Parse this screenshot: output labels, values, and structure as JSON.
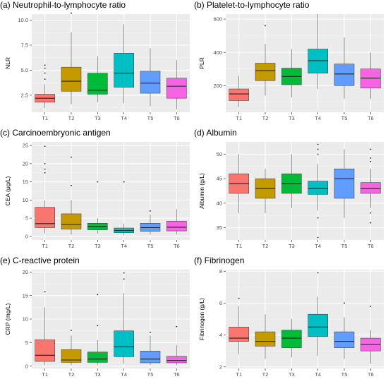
{
  "chart_data": [
    {
      "type": "boxplot",
      "title": "(a) Neutrophil-to-lymphocyte ratio",
      "xlabel": "",
      "ylabel": "NLR",
      "ylim": [
        0.8,
        10.6
      ],
      "yticks": [
        2.5,
        5.0,
        7.5,
        10.0
      ],
      "ytick_labels": [
        "2.5",
        "5.0",
        "7.5",
        "10.0"
      ],
      "categories": [
        "T1",
        "T2",
        "T3",
        "T4",
        "T5",
        "T6"
      ],
      "colors": [
        "#F8766D",
        "#C49A00",
        "#00BA38",
        "#00BFC4",
        "#619CFF",
        "#F564E3"
      ],
      "boxes": [
        {
          "low": 1.2,
          "q1": 1.8,
          "median": 2.2,
          "q3": 2.6,
          "high": 3.6,
          "outliers": [
            4.1,
            4.7,
            5.2,
            5.5
          ]
        },
        {
          "low": 1.6,
          "q1": 2.9,
          "median": 3.9,
          "q3": 5.3,
          "high": 8.8,
          "outliers": [
            10.7
          ]
        },
        {
          "low": 1.8,
          "q1": 2.6,
          "median": 3.0,
          "q3": 4.7,
          "high": 6.4,
          "outliers": []
        },
        {
          "low": 1.7,
          "q1": 3.3,
          "median": 4.7,
          "q3": 6.7,
          "high": 9.6,
          "outliers": []
        },
        {
          "low": 1.4,
          "q1": 2.7,
          "median": 3.7,
          "q3": 4.9,
          "high": 7.2,
          "outliers": []
        },
        {
          "low": 1.1,
          "q1": 2.2,
          "median": 3.4,
          "q3": 4.2,
          "high": 6.0,
          "outliers": []
        }
      ]
    },
    {
      "type": "boxplot",
      "title": "(b) Platelet-to-lymphocyte ratio",
      "xlabel": "",
      "ylabel": "PLR",
      "ylim": [
        40,
        630
      ],
      "yticks": [
        200,
        400,
        600
      ],
      "ytick_labels": [
        "200",
        "400",
        "600"
      ],
      "categories": [
        "T1",
        "T2",
        "T3",
        "T4",
        "T5",
        "T6"
      ],
      "colors": [
        "#F8766D",
        "#C49A00",
        "#00BA38",
        "#00BFC4",
        "#619CFF",
        "#F564E3"
      ],
      "boxes": [
        {
          "low": 70,
          "q1": 110,
          "median": 150,
          "q3": 180,
          "high": 260,
          "outliers": []
        },
        {
          "low": 140,
          "q1": 230,
          "median": 290,
          "q3": 335,
          "high": 450,
          "outliers": [
            560
          ]
        },
        {
          "low": 130,
          "q1": 205,
          "median": 255,
          "q3": 305,
          "high": 420,
          "outliers": []
        },
        {
          "low": 180,
          "q1": 275,
          "median": 350,
          "q3": 420,
          "high": 630,
          "outliers": []
        },
        {
          "low": 120,
          "q1": 200,
          "median": 270,
          "q3": 330,
          "high": 490,
          "outliers": []
        },
        {
          "low": 120,
          "q1": 185,
          "median": 245,
          "q3": 300,
          "high": 400,
          "outliers": []
        }
      ]
    },
    {
      "type": "boxplot",
      "title": "(c) Carcinoembryonic antigen",
      "xlabel": "",
      "ylabel": "CEA (μg/L)",
      "ylim": [
        -1,
        26
      ],
      "yticks": [
        0,
        5,
        10,
        15,
        20,
        25
      ],
      "ytick_labels": [
        "0",
        "5",
        "10",
        "15",
        "20",
        "25"
      ],
      "categories": [
        "T1",
        "T2",
        "T3",
        "T4",
        "T5",
        "T6"
      ],
      "colors": [
        "#F8766D",
        "#C49A00",
        "#00BA38",
        "#00BFC4",
        "#619CFF",
        "#F564E3"
      ],
      "boxes": [
        {
          "low": 0.8,
          "q1": 2.4,
          "median": 3.5,
          "q3": 8.0,
          "high": 10.0,
          "outliers": [
            17.5,
            18.5,
            20.0,
            24.8
          ]
        },
        {
          "low": 0.5,
          "q1": 2.0,
          "median": 3.3,
          "q3": 6.2,
          "high": 10.0,
          "outliers": [
            14.0,
            21.8
          ]
        },
        {
          "low": 0.7,
          "q1": 1.8,
          "median": 2.7,
          "q3": 3.6,
          "high": 5.0,
          "outliers": [
            15.0
          ]
        },
        {
          "low": 0.3,
          "q1": 1.0,
          "median": 1.6,
          "q3": 2.3,
          "high": 3.5,
          "outliers": [
            15.0
          ]
        },
        {
          "low": 0.5,
          "q1": 1.4,
          "median": 2.4,
          "q3": 3.6,
          "high": 6.0,
          "outliers": [
            7.0
          ]
        },
        {
          "low": 0.5,
          "q1": 1.5,
          "median": 2.5,
          "q3": 4.2,
          "high": 7.5,
          "outliers": []
        }
      ]
    },
    {
      "type": "boxplot",
      "title": "(d) Albumin",
      "xlabel": "",
      "ylabel": "Albumin (g/L)",
      "ylim": [
        32.5,
        52.5
      ],
      "yticks": [
        35,
        40,
        45,
        50
      ],
      "ytick_labels": [
        "35",
        "40",
        "45",
        "50"
      ],
      "categories": [
        "T1",
        "T2",
        "T3",
        "T4",
        "T5",
        "T6"
      ],
      "colors": [
        "#F8766D",
        "#C49A00",
        "#00BA38",
        "#00BFC4",
        "#619CFF",
        "#F564E3"
      ],
      "boxes": [
        {
          "low": 38.0,
          "q1": 42.0,
          "median": 44.0,
          "q3": 46.0,
          "high": 50.0,
          "outliers": []
        },
        {
          "low": 38.0,
          "q1": 41.0,
          "median": 43.0,
          "q3": 45.0,
          "high": 47.0,
          "outliers": []
        },
        {
          "low": 39.0,
          "q1": 42.0,
          "median": 44.0,
          "q3": 46.0,
          "high": 50.0,
          "outliers": []
        },
        {
          "low": 38.5,
          "q1": 41.8,
          "median": 43.0,
          "q3": 44.5,
          "high": 48.0,
          "outliers": [
            33.0,
            37.0,
            50.0,
            51.0,
            52.0
          ]
        },
        {
          "low": 37.0,
          "q1": 41.0,
          "median": 45.0,
          "q3": 47.0,
          "high": 51.0,
          "outliers": []
        },
        {
          "low": 39.0,
          "q1": 42.0,
          "median": 43.0,
          "q3": 44.2,
          "high": 47.0,
          "outliers": [
            36.0,
            38.0,
            48.5,
            49.2,
            51.0
          ]
        }
      ]
    },
    {
      "type": "boxplot",
      "title": "(e) C-reactive protein",
      "xlabel": "",
      "ylabel": "CRP (mg/L)",
      "ylim": [
        -0.5,
        20.5
      ],
      "yticks": [
        0,
        5,
        10,
        15,
        20
      ],
      "ytick_labels": [
        "0",
        "5",
        "10",
        "15",
        "20"
      ],
      "categories": [
        "T1",
        "T2",
        "T3",
        "T4",
        "T5",
        "T6"
      ],
      "colors": [
        "#F8766D",
        "#C49A00",
        "#00BA38",
        "#00BFC4",
        "#619CFF",
        "#F564E3"
      ],
      "boxes": [
        {
          "low": 0.2,
          "q1": 1.0,
          "median": 2.3,
          "q3": 5.6,
          "high": 12.5,
          "outliers": [
            15.8
          ]
        },
        {
          "low": 0.2,
          "q1": 0.8,
          "median": 1.3,
          "q3": 3.5,
          "high": 6.5,
          "outliers": [
            7.6
          ]
        },
        {
          "low": 0.2,
          "q1": 0.8,
          "median": 1.5,
          "q3": 3.0,
          "high": 5.5,
          "outliers": [
            8.6,
            15.2
          ]
        },
        {
          "low": 0.5,
          "q1": 2.0,
          "median": 4.1,
          "q3": 7.5,
          "high": 15.5,
          "outliers": [
            18.5,
            19.8
          ]
        },
        {
          "low": 0.2,
          "q1": 0.7,
          "median": 1.5,
          "q3": 3.2,
          "high": 6.5,
          "outliers": [
            7.2
          ]
        },
        {
          "low": 0.2,
          "q1": 0.7,
          "median": 1.2,
          "q3": 2.1,
          "high": 4.5,
          "outliers": [
            8.4
          ]
        }
      ]
    },
    {
      "type": "boxplot",
      "title": "(f) Fibrinogen",
      "xlabel": "",
      "ylabel": "Fibrinogen (g/L)",
      "ylim": [
        1.9,
        8.1
      ],
      "yticks": [
        2,
        4,
        6,
        8
      ],
      "ytick_labels": [
        "2",
        "4",
        "6",
        "8"
      ],
      "categories": [
        "T1",
        "T2",
        "T3",
        "T4",
        "T5",
        "T6"
      ],
      "colors": [
        "#F8766D",
        "#C49A00",
        "#00BA38",
        "#00BFC4",
        "#619CFF",
        "#F564E3"
      ],
      "boxes": [
        {
          "low": 2.8,
          "q1": 3.6,
          "median": 3.8,
          "q3": 4.5,
          "high": 5.8,
          "outliers": [
            6.3
          ]
        },
        {
          "low": 2.5,
          "q1": 3.3,
          "median": 3.6,
          "q3": 4.2,
          "high": 5.3,
          "outliers": []
        },
        {
          "low": 2.6,
          "q1": 3.2,
          "median": 3.8,
          "q3": 4.3,
          "high": 5.0,
          "outliers": []
        },
        {
          "low": 2.7,
          "q1": 3.9,
          "median": 4.5,
          "q3": 5.3,
          "high": 6.4,
          "outliers": [
            7.9
          ]
        },
        {
          "low": 2.5,
          "q1": 3.2,
          "median": 3.6,
          "q3": 4.2,
          "high": 5.1,
          "outliers": [
            6.0
          ]
        },
        {
          "low": 2.2,
          "q1": 3.0,
          "median": 3.4,
          "q3": 3.8,
          "high": 4.3,
          "outliers": [
            5.8
          ]
        }
      ]
    }
  ]
}
